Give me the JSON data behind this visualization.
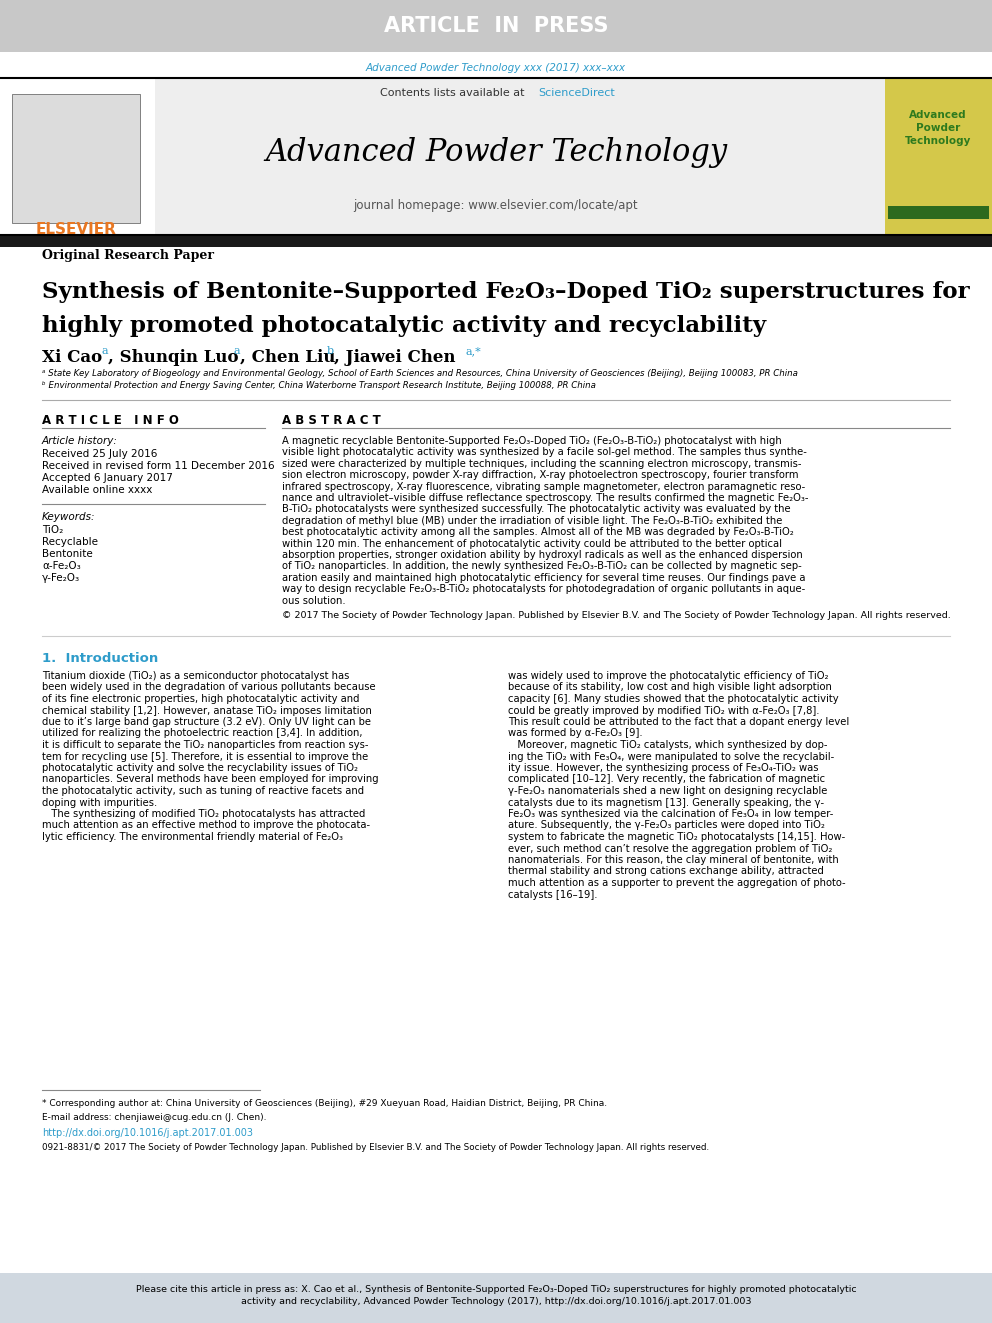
{
  "top_banner_text": "ARTICLE  IN  PRESS",
  "top_banner_bg": "#c8c8c8",
  "top_banner_text_color": "#ffffff",
  "journal_ref_text": "Advanced Powder Technology xxx (2017) xxx–xxx",
  "journal_ref_color": "#2e9cca",
  "contents_text": "Contents lists available at ",
  "sciencedirect_text": "ScienceDirect",
  "sciencedirect_color": "#2e9cca",
  "journal_title": "Advanced Powder Technology",
  "journal_homepage": "journal homepage: www.elsevier.com/locate/apt",
  "elsevier_text": "ELSEVIER",
  "elsevier_color": "#e87722",
  "header_bg": "#eeeeee",
  "sidebar_bg": "#d4c84a",
  "sidebar_title": "Advanced\nPowder\nTechnology",
  "sidebar_title_color": "#2e7a1e",
  "black_bar_bg": "#1a1a1a",
  "paper_type": "Original Research Paper",
  "article_title_line1": "Synthesis of Bentonite–Supported Fe₂O₃–Doped TiO₂ superstructures for",
  "article_title_line2": "highly promoted photocatalytic activity and recyclability",
  "affil_a": "ᵃ State Key Laboratory of Biogeology and Environmental Geology, School of Earth Sciences and Resources, China University of Geosciences (Beijing), Beijing 100083, PR China",
  "affil_b": "ᵇ Environmental Protection and Energy Saving Center, China Waterborne Transport Research Institute, Beijing 100088, PR China",
  "article_info_header": "A R T I C L E   I N F O",
  "article_history_label": "Article history:",
  "received_date": "Received 25 July 2016",
  "revised_date": "Received in revised form 11 December 2016",
  "accepted_date": "Accepted 6 January 2017",
  "online_date": "Available online xxxx",
  "keywords_label": "Keywords:",
  "keyword1": "TiO₂",
  "keyword2": "Recyclable",
  "keyword3": "Bentonite",
  "keyword4": "α-Fe₂O₃",
  "keyword5": "γ-Fe₂O₃",
  "abstract_header": "A B S T R A C T",
  "copyright_text": "© 2017 The Society of Powder Technology Japan. Published by Elsevier B.V. and The Society of Powder Technology Japan. All rights reserved.",
  "intro_header": "1.  Introduction",
  "footnote_star": "* Corresponding author at: China University of Geosciences (Beijing), #29 Xueyuan Road, Haidian District, Beijing, PR China.",
  "footnote_email": "E-mail address: chenjiawei@cug.edu.cn (J. Chen).",
  "doi_text": "http://dx.doi.org/10.1016/j.apt.2017.01.003",
  "doi_color": "#2e9cca",
  "issn_text": "0921-8831/© 2017 The Society of Powder Technology Japan. Published by Elsevier B.V. and The Society of Powder Technology Japan. All rights reserved.",
  "cite_banner_bg": "#d0d8e0",
  "bg_color": "#ffffff",
  "abstract_lines": [
    "A magnetic recyclable Bentonite-Supported Fe₂O₃-Doped TiO₂ (Fe₂O₃-B-TiO₂) photocatalyst with high",
    "visible light photocatalytic activity was synthesized by a facile sol-gel method. The samples thus synthe-",
    "sized were characterized by multiple techniques, including the scanning electron microscopy, transmis-",
    "sion electron microscopy, powder X-ray diffraction, X-ray photoelectron spectroscopy, fourier transform",
    "infrared spectroscopy, X-ray fluorescence, vibrating sample magnetometer, electron paramagnetic reso-",
    "nance and ultraviolet–visible diffuse reflectance spectroscopy. The results confirmed the magnetic Fe₂O₃-",
    "B-TiO₂ photocatalysts were synthesized successfully. The photocatalytic activity was evaluated by the",
    "degradation of methyl blue (MB) under the irradiation of visible light. The Fe₂O₃-B-TiO₂ exhibited the",
    "best photocatalytic activity among all the samples. Almost all of the MB was degraded by Fe₂O₃-B-TiO₂",
    "within 120 min. The enhancement of photocatalytic activity could be attributed to the better optical",
    "absorption properties, stronger oxidation ability by hydroxyl radicals as well as the enhanced dispersion",
    "of TiO₂ nanoparticles. In addition, the newly synthesized Fe₂O₃-B-TiO₂ can be collected by magnetic sep-",
    "aration easily and maintained high photocatalytic efficiency for several time reuses. Our findings pave a",
    "way to design recyclable Fe₂O₃-B-TiO₂ photocatalysts for photodegradation of organic pollutants in aque-",
    "ous solution."
  ],
  "intro_col1_lines": [
    "Titanium dioxide (TiO₂) as a semiconductor photocatalyst has",
    "been widely used in the degradation of various pollutants because",
    "of its fine electronic properties, high photocatalytic activity and",
    "chemical stability [1,2]. However, anatase TiO₂ imposes limitation",
    "due to it’s large band gap structure (3.2 eV). Only UV light can be",
    "utilized for realizing the photoelectric reaction [3,4]. In addition,",
    "it is difficult to separate the TiO₂ nanoparticles from reaction sys-",
    "tem for recycling use [5]. Therefore, it is essential to improve the",
    "photocatalytic activity and solve the recyclability issues of TiO₂",
    "nanoparticles. Several methods have been employed for improving",
    "the photocatalytic activity, such as tuning of reactive facets and",
    "doping with impurities.",
    "   The synthesizing of modified TiO₂ photocatalysts has attracted",
    "much attention as an effective method to improve the photocata-",
    "lytic efficiency. The environmental friendly material of Fe₂O₃"
  ],
  "intro_col2_lines": [
    "was widely used to improve the photocatalytic efficiency of TiO₂",
    "because of its stability, low cost and high visible light adsorption",
    "capacity [6]. Many studies showed that the photocatalytic activity",
    "could be greatly improved by modified TiO₂ with α-Fe₂O₃ [7,8].",
    "This result could be attributed to the fact that a dopant energy level",
    "was formed by α-Fe₂O₃ [9].",
    "   Moreover, magnetic TiO₂ catalysts, which synthesized by dop-",
    "ing the TiO₂ with Fe₃O₄, were manipulated to solve the recyclabil-",
    "ity issue. However, the synthesizing process of Fe₃O₄-TiO₂ was",
    "complicated [10–12]. Very recently, the fabrication of magnetic",
    "γ-Fe₂O₃ nanomaterials shed a new light on designing recyclable",
    "catalysts due to its magnetism [13]. Generally speaking, the γ-",
    "Fe₂O₃ was synthesized via the calcination of Fe₃O₄ in low temper-",
    "ature. Subsequently, the γ-Fe₂O₃ particles were doped into TiO₂",
    "system to fabricate the magnetic TiO₂ photocatalysts [14,15]. How-",
    "ever, such method can’t resolve the aggregation problem of TiO₂",
    "nanomaterials. For this reason, the clay mineral of bentonite, with",
    "thermal stability and strong cations exchange ability, attracted",
    "much attention as a supporter to prevent the aggregation of photo-",
    "catalysts [16–19]."
  ],
  "cite_lines": [
    "Please cite this article in press as: X. Cao et al., Synthesis of Bentonite-Supported Fe₂O₃-Doped TiO₂ superstructures for highly promoted photocatalytic",
    "activity and recyclability, Advanced Powder Technology (2017), http://dx.doi.org/10.1016/j.apt.2017.01.003"
  ]
}
